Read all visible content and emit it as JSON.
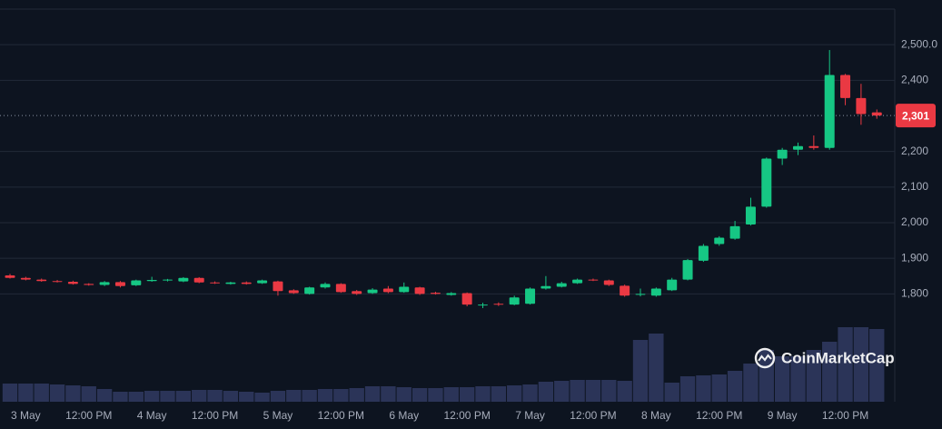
{
  "chart_data": {
    "type": "candlestick",
    "categories": [
      null,
      "3 May",
      null,
      null,
      null,
      "12:00 PM",
      null,
      null,
      null,
      "4 May",
      null,
      null,
      null,
      "12:00 PM",
      null,
      null,
      null,
      "5 May",
      null,
      null,
      null,
      "12:00 PM",
      null,
      null,
      null,
      "6 May",
      null,
      null,
      null,
      "12:00 PM",
      null,
      null,
      null,
      "7 May",
      null,
      null,
      null,
      "12:00 PM",
      null,
      null,
      null,
      "8 May",
      null,
      null,
      null,
      "12:00 PM",
      null,
      null,
      null,
      "9 May",
      null,
      null,
      null,
      "12:00 PM",
      null,
      null
    ],
    "open": [
      1852,
      1845,
      1840,
      1836,
      1834,
      1828,
      1825,
      1833,
      1824,
      1836,
      1838,
      1835,
      1845,
      1832,
      1828,
      1832,
      1830,
      1835,
      1810,
      1800,
      1818,
      1828,
      1808,
      1802,
      1815,
      1805,
      1818,
      1803,
      1797,
      1802,
      1768,
      1772,
      1770,
      1772,
      1815,
      1820,
      1830,
      1840,
      1838,
      1823,
      1798,
      1795,
      1810,
      1840,
      1893,
      1940,
      1955,
      1995,
      2045,
      2180,
      2205,
      2215,
      2210,
      2415,
      2350,
      2310
    ],
    "high": [
      1856,
      1848,
      1843,
      1839,
      1837,
      1830,
      1836,
      1836,
      1840,
      1848,
      1842,
      1847,
      1847,
      1835,
      1834,
      1835,
      1840,
      1837,
      1813,
      1820,
      1832,
      1830,
      1811,
      1816,
      1822,
      1832,
      1820,
      1806,
      1805,
      1804,
      1775,
      1776,
      1795,
      1818,
      1850,
      1834,
      1843,
      1843,
      1840,
      1826,
      1815,
      1818,
      1845,
      1898,
      1940,
      1962,
      2005,
      2070,
      2183,
      2210,
      2225,
      2245,
      2485,
      2418,
      2390,
      2318
    ],
    "low": [
      1843,
      1838,
      1834,
      1832,
      1826,
      1823,
      1822,
      1818,
      1822,
      1834,
      1835,
      1833,
      1830,
      1828,
      1826,
      1826,
      1828,
      1795,
      1800,
      1798,
      1815,
      1803,
      1797,
      1800,
      1802,
      1803,
      1797,
      1798,
      1795,
      1765,
      1760,
      1766,
      1768,
      1770,
      1812,
      1818,
      1828,
      1836,
      1822,
      1792,
      1793,
      1792,
      1808,
      1838,
      1890,
      1935,
      1952,
      1992,
      2042,
      2162,
      2190,
      2205,
      2205,
      2330,
      2275,
      2292
    ],
    "close": [
      1845,
      1840,
      1836,
      1834,
      1828,
      1825,
      1833,
      1822,
      1838,
      1839,
      1840,
      1845,
      1832,
      1830,
      1832,
      1828,
      1838,
      1808,
      1802,
      1818,
      1828,
      1805,
      1800,
      1812,
      1805,
      1820,
      1800,
      1800,
      1802,
      1770,
      1770,
      1770,
      1790,
      1815,
      1822,
      1830,
      1840,
      1838,
      1825,
      1795,
      1800,
      1815,
      1840,
      1895,
      1935,
      1958,
      1990,
      2045,
      2180,
      2205,
      2215,
      2210,
      2415,
      2350,
      2305,
      2301
    ],
    "volume": [
      20,
      20,
      20,
      19,
      18,
      17,
      14,
      11,
      11,
      12,
      12,
      12,
      13,
      13,
      12,
      11,
      10,
      12,
      13,
      13,
      14,
      14,
      15,
      17,
      17,
      16,
      15,
      15,
      16,
      16,
      17,
      17,
      18,
      19,
      22,
      23,
      24,
      24,
      24,
      23,
      68,
      75,
      21,
      28,
      29,
      30,
      34,
      42,
      57,
      50,
      50,
      57,
      66,
      82,
      82,
      80
    ],
    "up_color": "#16c784",
    "down_color": "#ea3943",
    "volume_color": "#2b3458",
    "ylim": [
      1497,
      2600
    ],
    "yticks": [
      {
        "value": 2500,
        "label": "2,500.0"
      },
      {
        "value": 2400,
        "label": "2,400"
      },
      {
        "value": 2200,
        "label": "2,200"
      },
      {
        "value": 2100,
        "label": "2,100"
      },
      {
        "value": 2000,
        "label": "2,000"
      },
      {
        "value": 1900,
        "label": "1,900"
      },
      {
        "value": 1800,
        "label": "1,800"
      }
    ],
    "grid": true,
    "current_price": {
      "value": 2301,
      "label": "2,301"
    },
    "watermark": "CoinMarketCap"
  }
}
